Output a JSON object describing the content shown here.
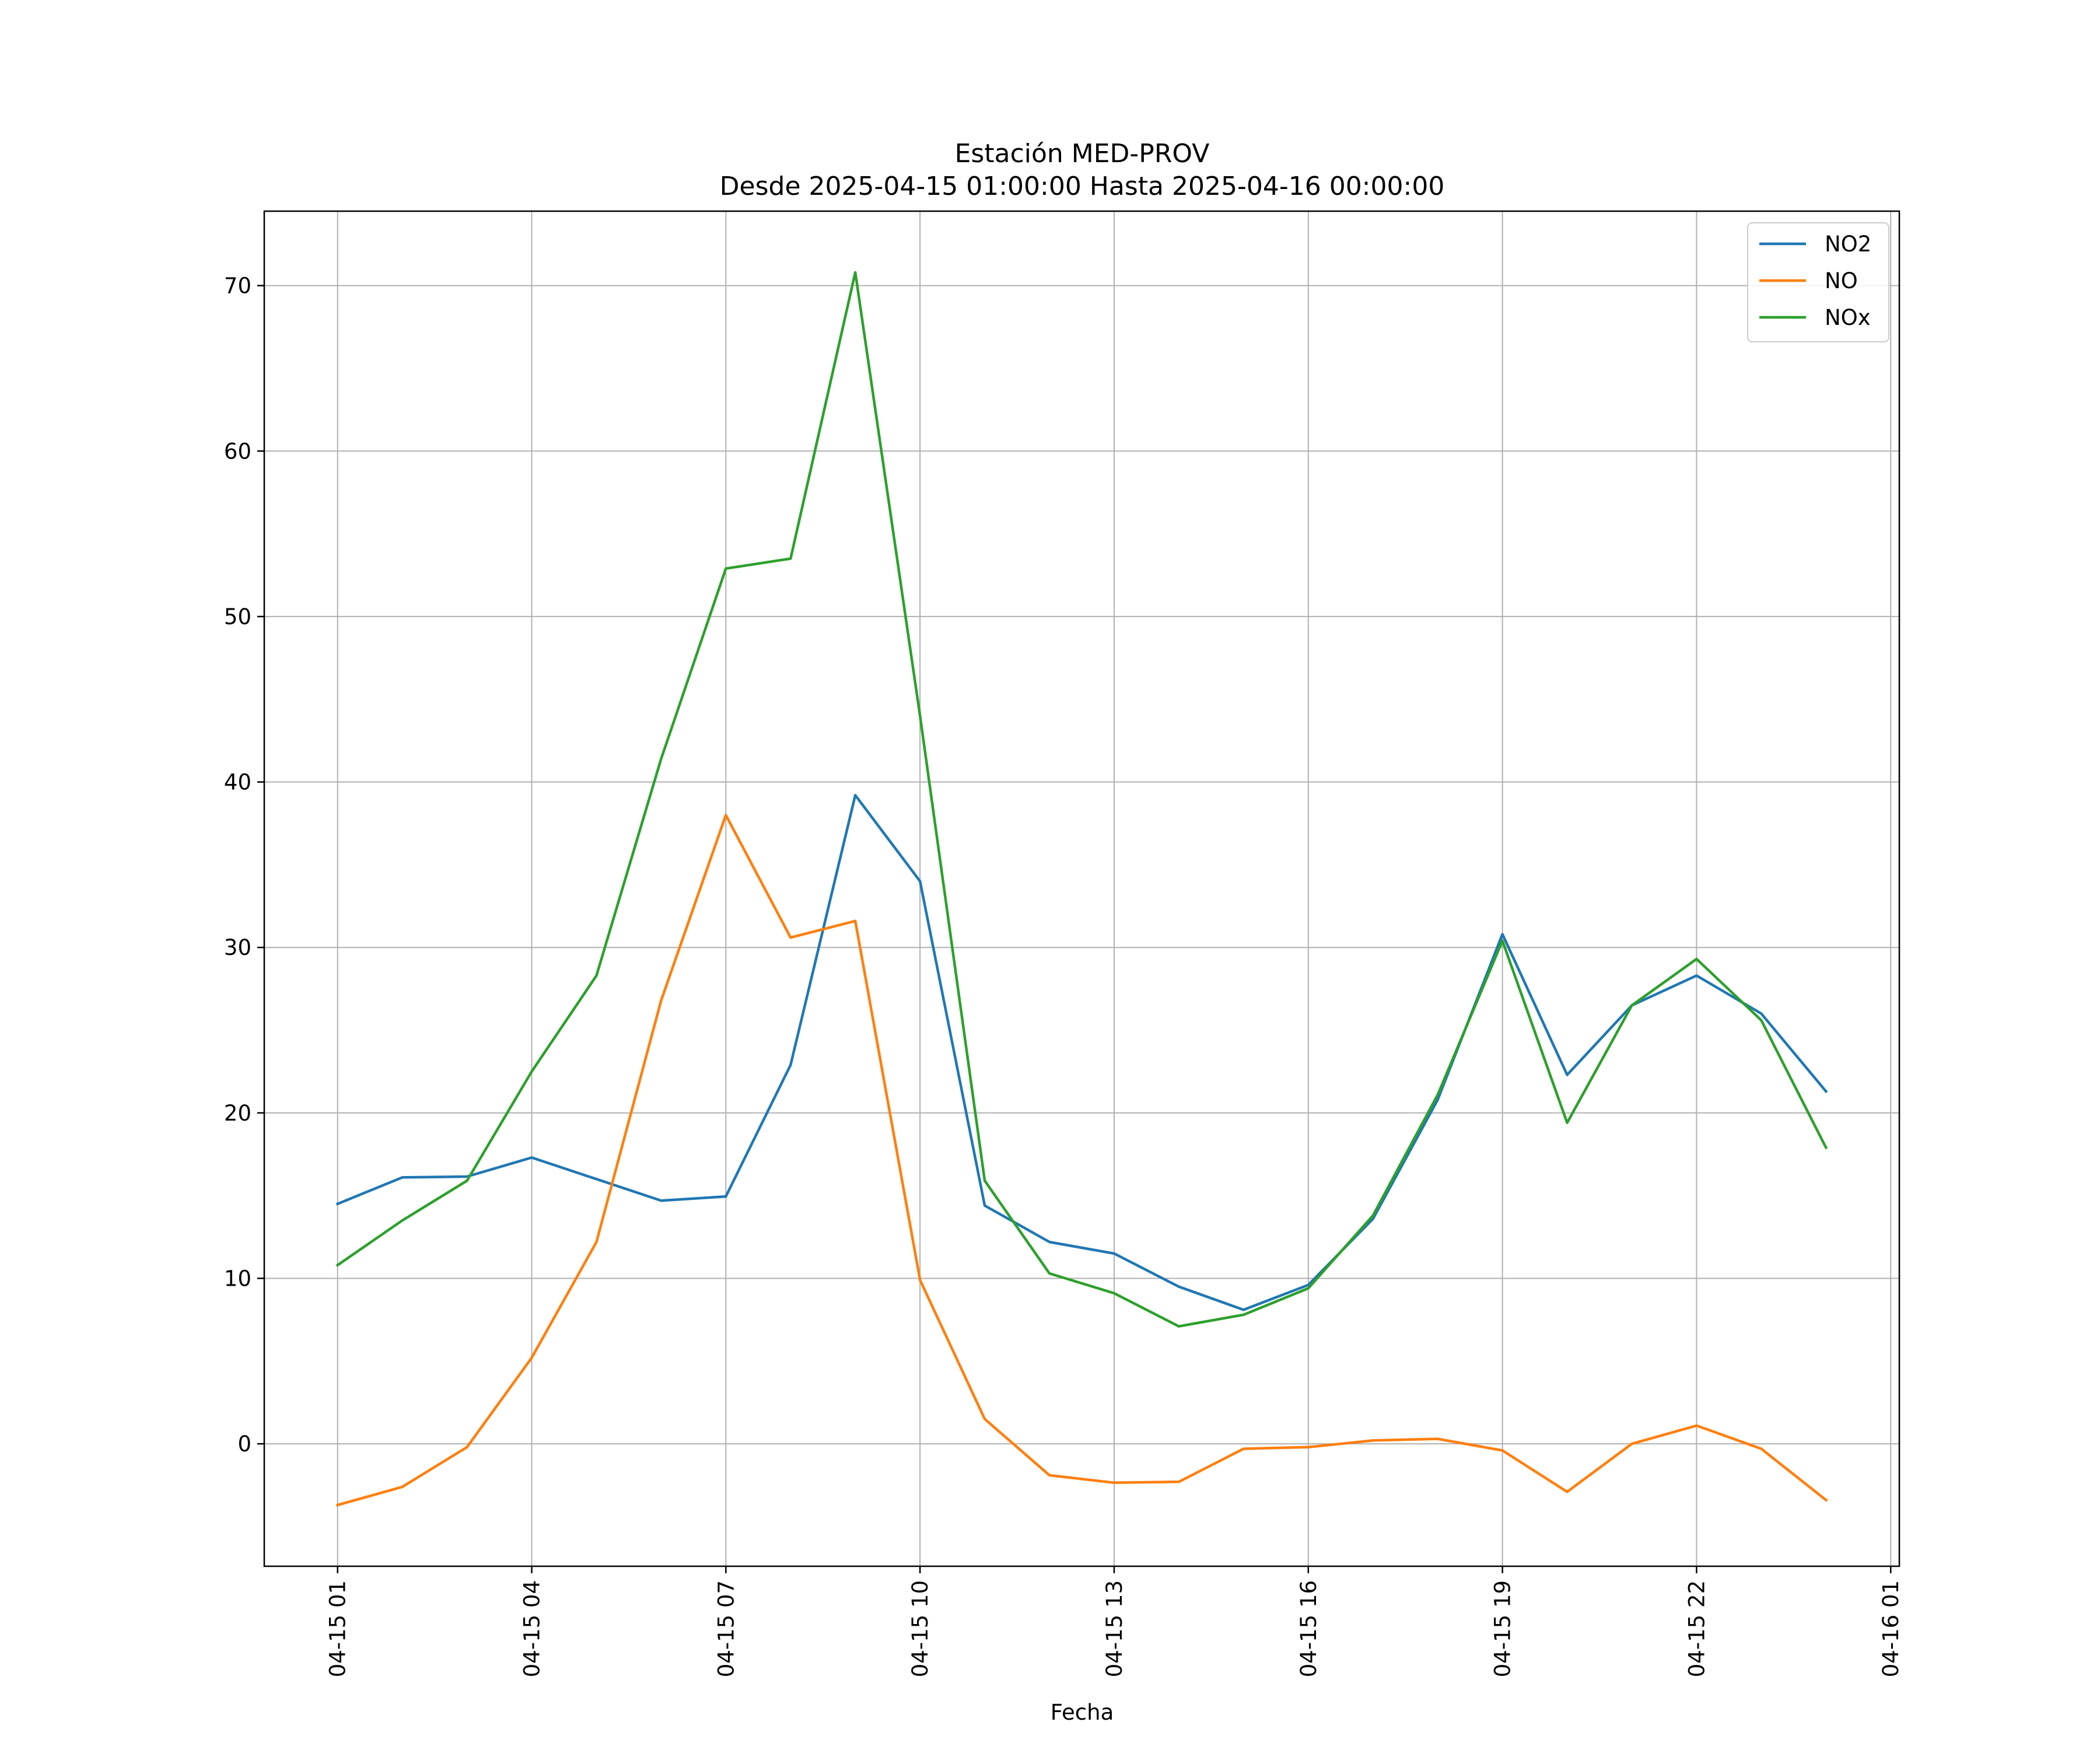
{
  "chart_data": {
    "type": "line",
    "title": "Estación MED-PROV",
    "subtitle": "Desde 2025-04-15 01:00:00 Hasta 2025-04-16 00:00:00",
    "xlabel": "Fecha",
    "ylabel": "",
    "x": [
      "2025-04-15 01:00",
      "2025-04-15 02:00",
      "2025-04-15 03:00",
      "2025-04-15 04:00",
      "2025-04-15 05:00",
      "2025-04-15 06:00",
      "2025-04-15 07:00",
      "2025-04-15 08:00",
      "2025-04-15 09:00",
      "2025-04-15 10:00",
      "2025-04-15 11:00",
      "2025-04-15 12:00",
      "2025-04-15 13:00",
      "2025-04-15 14:00",
      "2025-04-15 15:00",
      "2025-04-15 16:00",
      "2025-04-15 17:00",
      "2025-04-15 18:00",
      "2025-04-15 19:00",
      "2025-04-15 20:00",
      "2025-04-15 21:00",
      "2025-04-15 22:00",
      "2025-04-15 23:00",
      "2025-04-16 00:00"
    ],
    "xticks": [
      "04-15 01",
      "04-15 04",
      "04-15 07",
      "04-15 10",
      "04-15 13",
      "04-15 16",
      "04-15 19",
      "04-15 22",
      "04-16 01"
    ],
    "xlim": [
      "2025-04-14 23:52",
      "2025-04-16 01:08"
    ],
    "ylim": [
      -7.4,
      74.5
    ],
    "yticks": [
      0,
      10,
      20,
      30,
      40,
      50,
      60,
      70
    ],
    "grid": true,
    "legend_position": "top-right",
    "series": [
      {
        "name": "NO2",
        "color": "#1f77b4",
        "values": [
          14.5,
          16.1,
          16.15,
          17.3,
          16.0,
          14.7,
          14.95,
          22.9,
          39.2,
          34.0,
          14.4,
          12.2,
          11.5,
          9.5,
          8.1,
          9.6,
          13.6,
          20.8,
          30.8,
          22.3,
          26.5,
          28.3,
          26.0,
          21.3
        ]
      },
      {
        "name": "NO",
        "color": "#ff7f0e",
        "values": [
          -3.7,
          -2.6,
          -0.2,
          5.2,
          12.2,
          26.8,
          38.0,
          30.6,
          31.6,
          9.9,
          1.5,
          -1.9,
          -2.35,
          -2.3,
          -0.3,
          -0.2,
          0.2,
          0.3,
          -0.4,
          -2.9,
          0.0,
          1.1,
          -0.3,
          -3.4
        ]
      },
      {
        "name": "NOx",
        "color": "#2ca02c",
        "values": [
          10.8,
          13.5,
          15.9,
          22.5,
          28.3,
          41.4,
          52.9,
          53.5,
          70.8,
          44.0,
          15.9,
          10.3,
          9.1,
          7.1,
          7.8,
          9.4,
          13.8,
          21.1,
          30.4,
          19.4,
          26.5,
          29.3,
          25.6,
          17.9
        ]
      }
    ]
  }
}
